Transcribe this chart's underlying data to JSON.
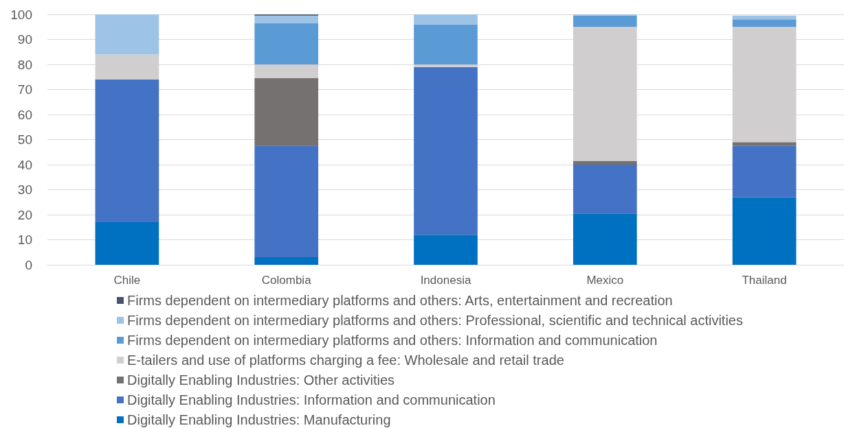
{
  "chart_data": {
    "type": "bar",
    "stacked": true,
    "categories": [
      "Chile",
      "Colombia",
      "Indonesia",
      "Mexico",
      "Thailand"
    ],
    "series": [
      {
        "name": "Digitally Enabling Industries: Manufacturing",
        "color": "#0070c0",
        "values": [
          17,
          3,
          12,
          20.5,
          27
        ]
      },
      {
        "name": "Digitally Enabling Industries: Information and communication",
        "color": "#4472c4",
        "values": [
          57,
          44.5,
          67,
          19.5,
          20.5
        ]
      },
      {
        "name": "Digitally Enabling Industries: Other activities",
        "color": "#767171",
        "values": [
          0,
          27,
          0,
          1.5,
          1.5
        ]
      },
      {
        "name": "E-tailers and use of platforms charging a fee: Wholesale and retail trade",
        "color": "#d0cece",
        "values": [
          10,
          5.5,
          1,
          53.5,
          46
        ]
      },
      {
        "name": "Firms dependent on intermediary platforms and others: Information and communication",
        "color": "#5b9bd5",
        "values": [
          0,
          16.5,
          16,
          4.5,
          3
        ]
      },
      {
        "name": "Firms dependent on intermediary platforms and others: Professional, scientific and technical activities",
        "color": "#9dc3e6",
        "values": [
          16,
          3,
          4,
          0.5,
          1.5
        ]
      },
      {
        "name": "Firms dependent on intermediary platforms and others: Arts, entertainment and recreation",
        "color": "#44546a",
        "values": [
          0,
          0.5,
          0,
          0,
          0
        ]
      }
    ],
    "ylim": [
      0,
      100
    ],
    "yticks": [
      0,
      10,
      20,
      30,
      40,
      50,
      60,
      70,
      80,
      90,
      100
    ],
    "grid": "y",
    "legend": "bottom"
  }
}
